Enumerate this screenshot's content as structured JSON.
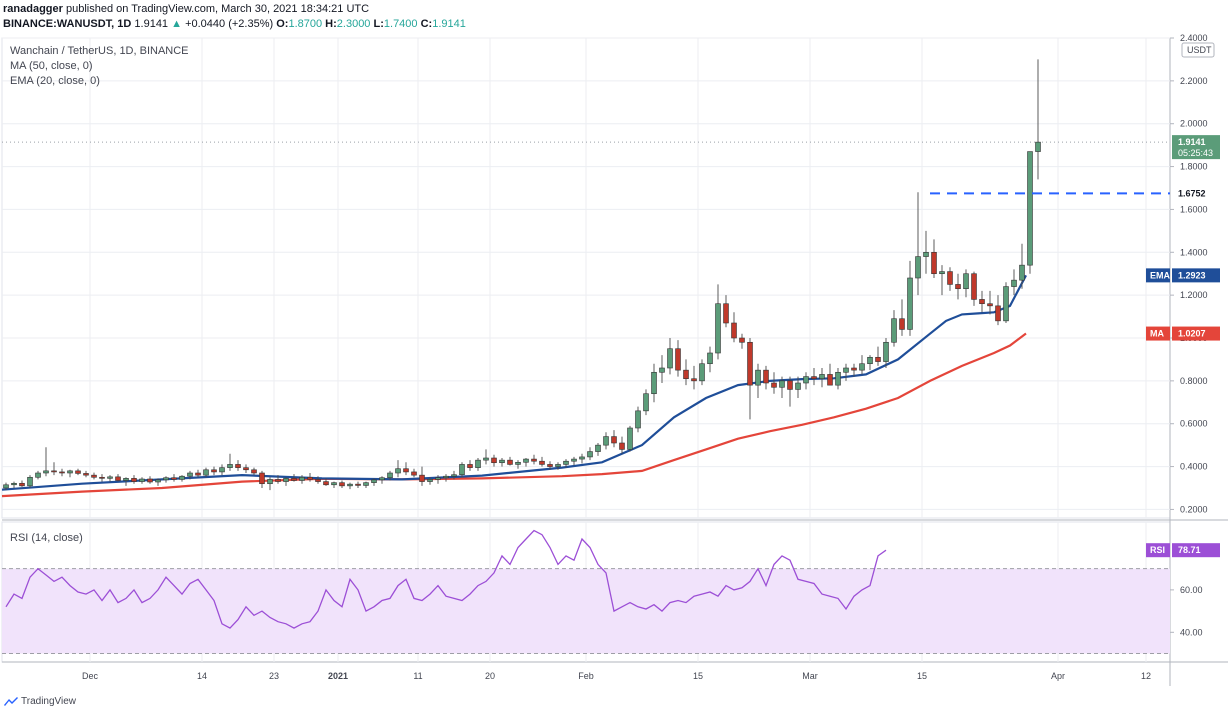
{
  "header": {
    "author": "ranadagger",
    "published_text": "published on TradingView.com, March 30, 2021 18:34:21 UTC",
    "symbol": "BINANCE:WANUSDT, 1D",
    "last": "1.9141",
    "change_arrow": "▲",
    "change": "+0.0440 (+2.35%)",
    "o_label": "O:",
    "o": "1.8700",
    "h_label": "H:",
    "h": "2.3000",
    "l_label": "L:",
    "l": "1.7400",
    "c_label": "C:",
    "c": "1.9141"
  },
  "legend": {
    "title": "Wanchain / TetherUS, 1D, BINANCE",
    "ma": "MA (50, close, 0)",
    "ema": "EMA (20, close, 0)",
    "rsi": "RSI (14, close)"
  },
  "footer": {
    "brand": "TradingView"
  },
  "colors": {
    "up": "#26a69a",
    "candle_up_fill": "#5b9c79",
    "candle_down_fill": "#c0392b",
    "ema": "#1f4e99",
    "ma": "#e4453a",
    "rsi": "#9c4fd6",
    "rsi_band": "#f1e3fb",
    "level": "#2962ff",
    "price_tag": "#5b9c79"
  },
  "chart_data": {
    "type": "candlestick",
    "title": "Wanchain / TetherUS, 1D, BINANCE",
    "currency": "USDT",
    "ylim": [
      0.16,
      2.4
    ],
    "y_ticks": [
      0.2,
      0.4,
      0.6,
      0.8,
      1.0,
      1.2,
      1.4,
      1.6,
      1.8,
      2.0,
      2.2,
      2.4
    ],
    "y_tick_labels": [
      "0.2000",
      "0.4000",
      "0.6000",
      "0.8000",
      "1.0000",
      "1.2000",
      "1.4000",
      "1.6000",
      "1.8000",
      "2.0000",
      "2.2000",
      "2.4000"
    ],
    "x_tick_labels": [
      {
        "label": "Dec",
        "day": 11
      },
      {
        "label": "14",
        "day": 25
      },
      {
        "label": "23",
        "day": 34
      },
      {
        "label": "2021",
        "day": 42
      },
      {
        "label": "11",
        "day": 52
      },
      {
        "label": "20",
        "day": 61
      },
      {
        "label": "Feb",
        "day": 73
      },
      {
        "label": "15",
        "day": 87
      },
      {
        "label": "Mar",
        "day": 101
      },
      {
        "label": "15",
        "day": 115
      },
      {
        "label": "Apr",
        "day": 132
      },
      {
        "label": "12",
        "day": 143
      }
    ],
    "x_range_days": [
      0,
      146
    ],
    "first_date": "2020-11-20",
    "candles_ohlc": [
      [
        0.3,
        0.325,
        0.29,
        0.315
      ],
      [
        0.315,
        0.33,
        0.3,
        0.322
      ],
      [
        0.322,
        0.335,
        0.305,
        0.31
      ],
      [
        0.31,
        0.36,
        0.3,
        0.35
      ],
      [
        0.35,
        0.38,
        0.34,
        0.37
      ],
      [
        0.37,
        0.49,
        0.355,
        0.38
      ],
      [
        0.38,
        0.42,
        0.36,
        0.375
      ],
      [
        0.375,
        0.39,
        0.355,
        0.37
      ],
      [
        0.37,
        0.385,
        0.35,
        0.38
      ],
      [
        0.38,
        0.39,
        0.36,
        0.368
      ],
      [
        0.368,
        0.38,
        0.35,
        0.36
      ],
      [
        0.36,
        0.372,
        0.34,
        0.35
      ],
      [
        0.35,
        0.365,
        0.33,
        0.345
      ],
      [
        0.345,
        0.36,
        0.33,
        0.352
      ],
      [
        0.352,
        0.365,
        0.33,
        0.335
      ],
      [
        0.335,
        0.35,
        0.31,
        0.345
      ],
      [
        0.345,
        0.36,
        0.32,
        0.33
      ],
      [
        0.33,
        0.35,
        0.32,
        0.342
      ],
      [
        0.342,
        0.355,
        0.32,
        0.328
      ],
      [
        0.328,
        0.345,
        0.31,
        0.338
      ],
      [
        0.338,
        0.355,
        0.325,
        0.348
      ],
      [
        0.348,
        0.365,
        0.33,
        0.34
      ],
      [
        0.34,
        0.36,
        0.33,
        0.355
      ],
      [
        0.355,
        0.38,
        0.34,
        0.37
      ],
      [
        0.37,
        0.385,
        0.35,
        0.36
      ],
      [
        0.36,
        0.395,
        0.35,
        0.385
      ],
      [
        0.385,
        0.4,
        0.36,
        0.375
      ],
      [
        0.375,
        0.41,
        0.36,
        0.395
      ],
      [
        0.395,
        0.46,
        0.38,
        0.41
      ],
      [
        0.41,
        0.43,
        0.38,
        0.395
      ],
      [
        0.395,
        0.41,
        0.37,
        0.385
      ],
      [
        0.385,
        0.395,
        0.36,
        0.37
      ],
      [
        0.37,
        0.38,
        0.3,
        0.32
      ],
      [
        0.32,
        0.35,
        0.29,
        0.34
      ],
      [
        0.34,
        0.36,
        0.32,
        0.33
      ],
      [
        0.33,
        0.35,
        0.31,
        0.345
      ],
      [
        0.345,
        0.365,
        0.33,
        0.335
      ],
      [
        0.335,
        0.36,
        0.32,
        0.35
      ],
      [
        0.35,
        0.37,
        0.33,
        0.34
      ],
      [
        0.34,
        0.355,
        0.32,
        0.33
      ],
      [
        0.33,
        0.345,
        0.31,
        0.315
      ],
      [
        0.315,
        0.33,
        0.3,
        0.325
      ],
      [
        0.325,
        0.335,
        0.3,
        0.31
      ],
      [
        0.31,
        0.325,
        0.295,
        0.318
      ],
      [
        0.318,
        0.33,
        0.3,
        0.312
      ],
      [
        0.312,
        0.33,
        0.3,
        0.325
      ],
      [
        0.325,
        0.345,
        0.31,
        0.338
      ],
      [
        0.338,
        0.355,
        0.32,
        0.348
      ],
      [
        0.348,
        0.38,
        0.335,
        0.37
      ],
      [
        0.37,
        0.43,
        0.35,
        0.39
      ],
      [
        0.39,
        0.42,
        0.36,
        0.375
      ],
      [
        0.375,
        0.39,
        0.35,
        0.36
      ],
      [
        0.36,
        0.4,
        0.31,
        0.33
      ],
      [
        0.33,
        0.35,
        0.315,
        0.34
      ],
      [
        0.34,
        0.36,
        0.32,
        0.348
      ],
      [
        0.348,
        0.365,
        0.33,
        0.355
      ],
      [
        0.355,
        0.38,
        0.34,
        0.362
      ],
      [
        0.362,
        0.42,
        0.35,
        0.41
      ],
      [
        0.41,
        0.43,
        0.38,
        0.395
      ],
      [
        0.395,
        0.44,
        0.38,
        0.43
      ],
      [
        0.43,
        0.48,
        0.41,
        0.44
      ],
      [
        0.44,
        0.455,
        0.4,
        0.418
      ],
      [
        0.418,
        0.44,
        0.4,
        0.43
      ],
      [
        0.43,
        0.445,
        0.405,
        0.41
      ],
      [
        0.41,
        0.43,
        0.39,
        0.42
      ],
      [
        0.42,
        0.44,
        0.4,
        0.435
      ],
      [
        0.435,
        0.455,
        0.41,
        0.425
      ],
      [
        0.425,
        0.445,
        0.4,
        0.41
      ],
      [
        0.41,
        0.425,
        0.385,
        0.4
      ],
      [
        0.4,
        0.42,
        0.385,
        0.41
      ],
      [
        0.41,
        0.435,
        0.395,
        0.425
      ],
      [
        0.425,
        0.445,
        0.405,
        0.435
      ],
      [
        0.435,
        0.46,
        0.415,
        0.445
      ],
      [
        0.445,
        0.49,
        0.43,
        0.47
      ],
      [
        0.47,
        0.51,
        0.45,
        0.5
      ],
      [
        0.5,
        0.56,
        0.48,
        0.54
      ],
      [
        0.54,
        0.57,
        0.49,
        0.51
      ],
      [
        0.51,
        0.54,
        0.46,
        0.48
      ],
      [
        0.48,
        0.59,
        0.47,
        0.58
      ],
      [
        0.58,
        0.68,
        0.56,
        0.66
      ],
      [
        0.66,
        0.76,
        0.64,
        0.74
      ],
      [
        0.74,
        0.88,
        0.7,
        0.84
      ],
      [
        0.84,
        0.92,
        0.79,
        0.86
      ],
      [
        0.86,
        1.0,
        0.83,
        0.95
      ],
      [
        0.95,
        0.99,
        0.82,
        0.85
      ],
      [
        0.85,
        0.9,
        0.78,
        0.81
      ],
      [
        0.81,
        0.87,
        0.76,
        0.8
      ],
      [
        0.8,
        0.9,
        0.78,
        0.88
      ],
      [
        0.88,
        0.96,
        0.84,
        0.93
      ],
      [
        0.93,
        1.25,
        0.9,
        1.16
      ],
      [
        1.16,
        1.2,
        1.05,
        1.07
      ],
      [
        1.07,
        1.12,
        0.98,
        1.0
      ],
      [
        1.0,
        1.02,
        0.95,
        0.98
      ],
      [
        0.98,
        1.0,
        0.62,
        0.78
      ],
      [
        0.78,
        0.88,
        0.72,
        0.85
      ],
      [
        0.85,
        0.87,
        0.76,
        0.79
      ],
      [
        0.79,
        0.84,
        0.74,
        0.77
      ],
      [
        0.77,
        0.82,
        0.72,
        0.8
      ],
      [
        0.8,
        0.82,
        0.68,
        0.76
      ],
      [
        0.76,
        0.82,
        0.72,
        0.79
      ],
      [
        0.79,
        0.84,
        0.76,
        0.82
      ],
      [
        0.82,
        0.86,
        0.78,
        0.81
      ],
      [
        0.81,
        0.86,
        0.77,
        0.83
      ],
      [
        0.83,
        0.88,
        0.78,
        0.78
      ],
      [
        0.78,
        0.86,
        0.76,
        0.84
      ],
      [
        0.84,
        0.88,
        0.8,
        0.86
      ],
      [
        0.86,
        0.88,
        0.82,
        0.85
      ],
      [
        0.85,
        0.92,
        0.83,
        0.88
      ],
      [
        0.88,
        0.92,
        0.85,
        0.91
      ],
      [
        0.91,
        0.96,
        0.87,
        0.89
      ],
      [
        0.89,
        1.0,
        0.86,
        0.98
      ],
      [
        0.98,
        1.13,
        0.96,
        1.09
      ],
      [
        1.09,
        1.18,
        1.01,
        1.04
      ],
      [
        1.04,
        1.36,
        1.01,
        1.28
      ],
      [
        1.28,
        1.68,
        1.2,
        1.38
      ],
      [
        1.38,
        1.5,
        1.3,
        1.4
      ],
      [
        1.4,
        1.46,
        1.28,
        1.3
      ],
      [
        1.3,
        1.34,
        1.2,
        1.31
      ],
      [
        1.31,
        1.33,
        1.22,
        1.25
      ],
      [
        1.25,
        1.3,
        1.18,
        1.23
      ],
      [
        1.23,
        1.32,
        1.19,
        1.3
      ],
      [
        1.3,
        1.31,
        1.15,
        1.18
      ],
      [
        1.18,
        1.22,
        1.12,
        1.16
      ],
      [
        1.16,
        1.22,
        1.11,
        1.15
      ],
      [
        1.15,
        1.2,
        1.06,
        1.08
      ],
      [
        1.08,
        1.26,
        1.07,
        1.24
      ],
      [
        1.24,
        1.32,
        1.2,
        1.27
      ],
      [
        1.27,
        1.44,
        1.23,
        1.34
      ],
      [
        1.34,
        1.76,
        1.3,
        1.87
      ],
      [
        1.87,
        2.3,
        1.74,
        1.914
      ]
    ],
    "ema20": [
      [
        0,
        0.292
      ],
      [
        10,
        0.32
      ],
      [
        20,
        0.34
      ],
      [
        30,
        0.36
      ],
      [
        40,
        0.345
      ],
      [
        50,
        0.34
      ],
      [
        60,
        0.358
      ],
      [
        70,
        0.395
      ],
      [
        75,
        0.42
      ],
      [
        80,
        0.5
      ],
      [
        84,
        0.63
      ],
      [
        88,
        0.72
      ],
      [
        92,
        0.78
      ],
      [
        96,
        0.8
      ],
      [
        100,
        0.808
      ],
      [
        104,
        0.812
      ],
      [
        108,
        0.83
      ],
      [
        112,
        0.9
      ],
      [
        116,
        1.02
      ],
      [
        118,
        1.08
      ],
      [
        120,
        1.11
      ],
      [
        122,
        1.115
      ],
      [
        124,
        1.12
      ],
      [
        126,
        1.15
      ],
      [
        128,
        1.292
      ]
    ],
    "ma50": [
      [
        0,
        0.262
      ],
      [
        10,
        0.283
      ],
      [
        20,
        0.3
      ],
      [
        30,
        0.33
      ],
      [
        40,
        0.343
      ],
      [
        50,
        0.34
      ],
      [
        60,
        0.345
      ],
      [
        70,
        0.355
      ],
      [
        75,
        0.365
      ],
      [
        80,
        0.38
      ],
      [
        84,
        0.43
      ],
      [
        88,
        0.48
      ],
      [
        92,
        0.53
      ],
      [
        96,
        0.565
      ],
      [
        100,
        0.595
      ],
      [
        104,
        0.63
      ],
      [
        108,
        0.67
      ],
      [
        112,
        0.72
      ],
      [
        116,
        0.8
      ],
      [
        120,
        0.87
      ],
      [
        124,
        0.93
      ],
      [
        126,
        0.965
      ],
      [
        128,
        1.021
      ]
    ],
    "rsi14": [
      [
        0,
        52
      ],
      [
        1,
        58
      ],
      [
        2,
        56
      ],
      [
        3,
        66
      ],
      [
        4,
        70
      ],
      [
        5,
        67
      ],
      [
        6,
        64
      ],
      [
        7,
        66
      ],
      [
        8,
        62
      ],
      [
        9,
        59
      ],
      [
        10,
        58
      ],
      [
        11,
        60
      ],
      [
        12,
        55
      ],
      [
        13,
        60
      ],
      [
        14,
        54
      ],
      [
        15,
        56
      ],
      [
        16,
        60
      ],
      [
        17,
        54
      ],
      [
        18,
        56
      ],
      [
        19,
        60
      ],
      [
        20,
        66
      ],
      [
        21,
        62
      ],
      [
        22,
        58
      ],
      [
        23,
        63
      ],
      [
        24,
        65
      ],
      [
        25,
        60
      ],
      [
        26,
        55
      ],
      [
        27,
        44
      ],
      [
        28,
        42
      ],
      [
        29,
        46
      ],
      [
        30,
        52
      ],
      [
        31,
        48
      ],
      [
        32,
        50
      ],
      [
        33,
        47
      ],
      [
        34,
        45
      ],
      [
        35,
        44
      ],
      [
        36,
        42
      ],
      [
        37,
        44
      ],
      [
        38,
        45
      ],
      [
        39,
        50
      ],
      [
        40,
        60
      ],
      [
        41,
        55
      ],
      [
        42,
        52
      ],
      [
        43,
        65
      ],
      [
        44,
        60
      ],
      [
        45,
        50
      ],
      [
        46,
        52
      ],
      [
        47,
        55
      ],
      [
        48,
        56
      ],
      [
        49,
        62
      ],
      [
        50,
        65
      ],
      [
        51,
        56
      ],
      [
        52,
        55
      ],
      [
        53,
        58
      ],
      [
        54,
        62
      ],
      [
        55,
        57
      ],
      [
        56,
        56
      ],
      [
        57,
        55
      ],
      [
        58,
        58
      ],
      [
        59,
        62
      ],
      [
        60,
        64
      ],
      [
        61,
        68
      ],
      [
        62,
        76
      ],
      [
        63,
        72
      ],
      [
        64,
        80
      ],
      [
        65,
        84
      ],
      [
        66,
        88
      ],
      [
        67,
        86
      ],
      [
        68,
        80
      ],
      [
        69,
        72
      ],
      [
        70,
        76
      ],
      [
        71,
        74
      ],
      [
        72,
        84
      ],
      [
        73,
        80
      ],
      [
        74,
        72
      ],
      [
        75,
        68
      ],
      [
        76,
        50
      ],
      [
        77,
        52
      ],
      [
        78,
        54
      ],
      [
        79,
        52
      ],
      [
        80,
        51
      ],
      [
        81,
        53
      ],
      [
        82,
        50
      ],
      [
        83,
        54
      ],
      [
        84,
        55
      ],
      [
        85,
        54
      ],
      [
        86,
        57
      ],
      [
        87,
        58
      ],
      [
        88,
        59
      ],
      [
        89,
        57
      ],
      [
        90,
        62
      ],
      [
        91,
        60
      ],
      [
        92,
        61
      ],
      [
        93,
        64
      ],
      [
        94,
        70
      ],
      [
        95,
        62
      ],
      [
        96,
        72
      ],
      [
        97,
        76
      ],
      [
        98,
        74
      ],
      [
        99,
        65
      ],
      [
        100,
        64
      ],
      [
        101,
        63
      ],
      [
        102,
        58
      ],
      [
        103,
        57
      ],
      [
        104,
        56
      ],
      [
        105,
        51
      ],
      [
        106,
        57
      ],
      [
        107,
        60
      ],
      [
        108,
        62
      ],
      [
        109,
        76
      ],
      [
        110,
        78.71
      ]
    ],
    "rsi_ylim": [
      26,
      92
    ],
    "rsi_ticks": [
      40,
      60
    ],
    "rsi_tick_labels": [
      "40.00",
      "60.00"
    ],
    "rsi_band": [
      30,
      70
    ],
    "horizontal_level": {
      "value": 1.6752,
      "label": "1.6752"
    },
    "last_price": {
      "value": 1.9141,
      "label": "1.9141",
      "countdown": "05:25:43"
    },
    "ema_last": {
      "value": 1.2923,
      "tag": "EMA",
      "label": "1.2923"
    },
    "ma_last": {
      "value": 1.0207,
      "tag": "MA",
      "label": "1.0207"
    },
    "rsi_last": {
      "value": 78.71,
      "tag": "RSI",
      "label": "78.71"
    }
  }
}
